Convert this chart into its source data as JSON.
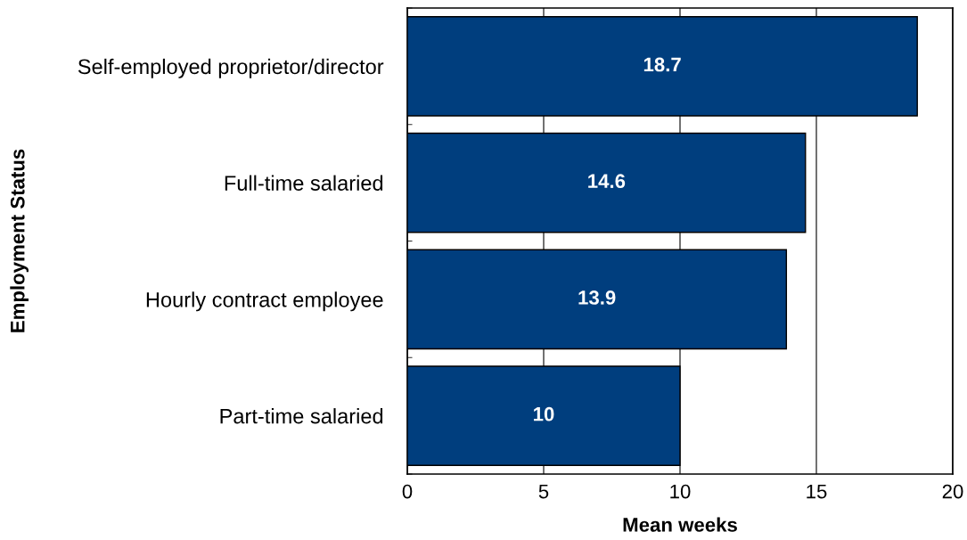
{
  "chart_data": {
    "type": "bar",
    "orientation": "horizontal",
    "categories": [
      "Self-employed proprietor/director",
      "Full-time salaried",
      "Hourly contract employee",
      "Part-time salaried"
    ],
    "values": [
      18.7,
      14.6,
      13.9,
      10
    ],
    "color": "#003e7e",
    "xlabel": "Mean weeks",
    "ylabel": "Employment Status",
    "xlim": [
      0,
      20
    ],
    "xticks": [
      0,
      5,
      10,
      15,
      20
    ],
    "grid": "x",
    "data_labels": true,
    "legend": false
  }
}
